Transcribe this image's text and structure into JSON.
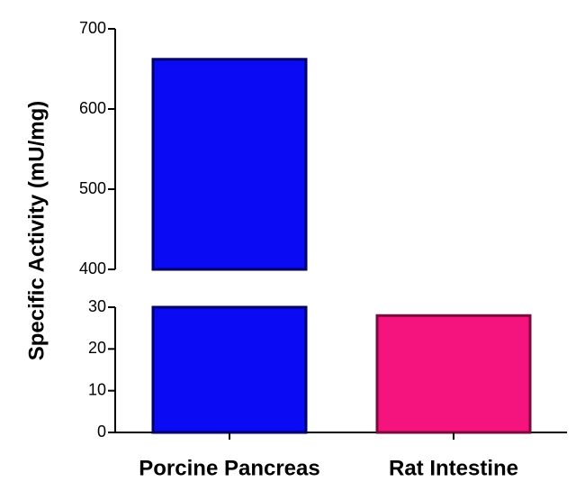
{
  "chart_data": {
    "type": "bar",
    "y_label": "Specific Activity (mU/mg)",
    "categories": [
      "Porcine Pancreas",
      "Rat Intestine"
    ],
    "values": [
      662,
      28
    ],
    "colors": [
      "#0a0af5",
      "#f5147d"
    ],
    "edge_colors": [
      "#000066",
      "#7a0a3c"
    ],
    "axis_segments": [
      {
        "ylim": [
          0,
          30
        ],
        "yticks": [
          0,
          10,
          20,
          30
        ]
      },
      {
        "ylim": [
          400,
          700
        ],
        "yticks": [
          400,
          500,
          600,
          700
        ]
      }
    ]
  }
}
